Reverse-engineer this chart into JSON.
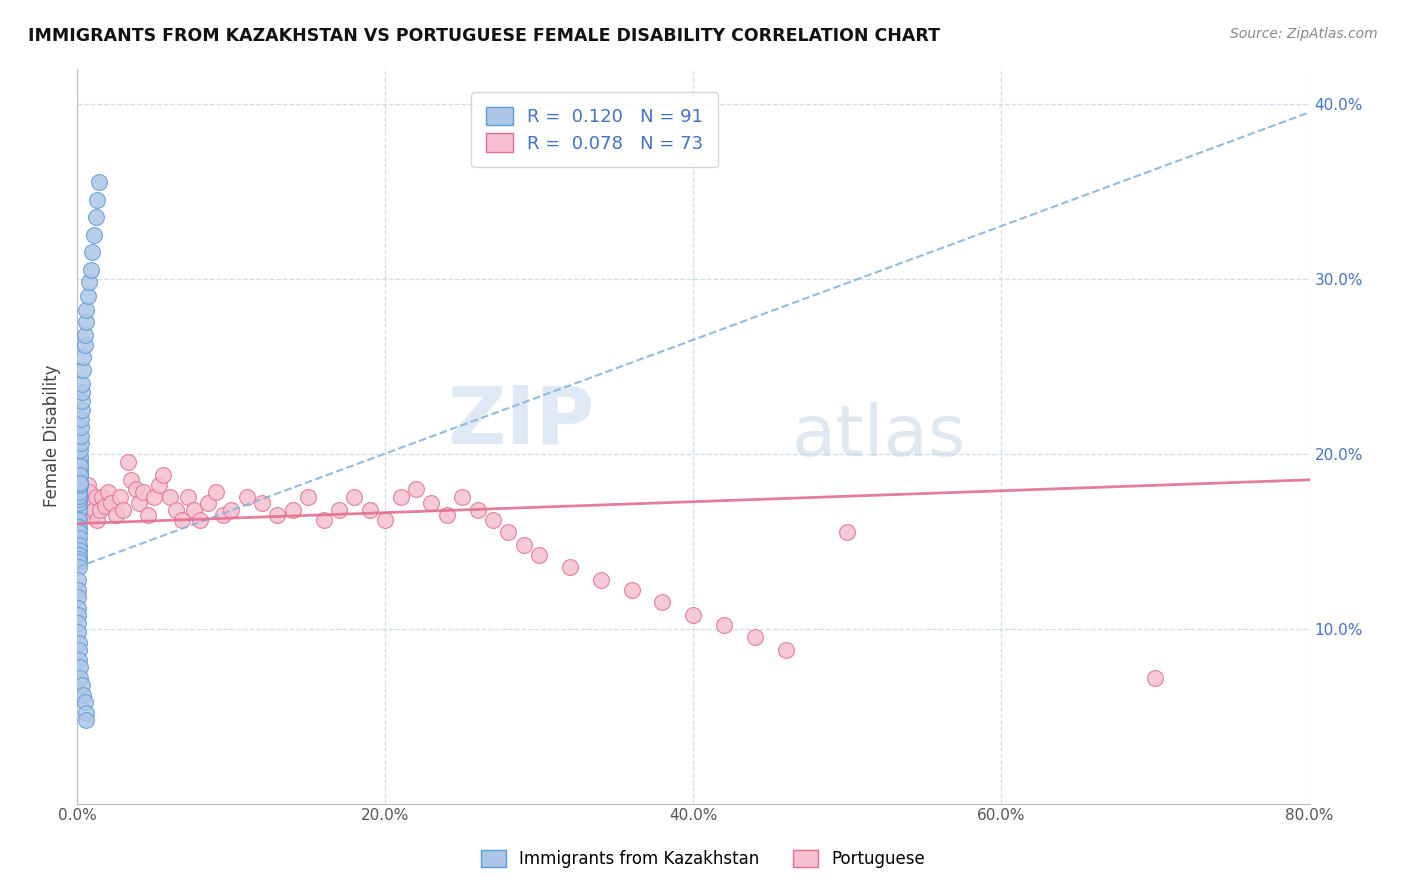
{
  "title": "IMMIGRANTS FROM KAZAKHSTAN VS PORTUGUESE FEMALE DISABILITY CORRELATION CHART",
  "source": "Source: ZipAtlas.com",
  "ylabel": "Female Disability",
  "xlim": [
    0.0,
    0.8
  ],
  "ylim": [
    0.0,
    0.42
  ],
  "xticks": [
    0.0,
    0.2,
    0.4,
    0.6,
    0.8
  ],
  "xtick_labels": [
    "0.0%",
    "20.0%",
    "40.0%",
    "60.0%",
    "80.0%"
  ],
  "yticks": [
    0.1,
    0.2,
    0.3,
    0.4
  ],
  "ytick_labels": [
    "10.0%",
    "20.0%",
    "30.0%",
    "40.0%"
  ],
  "series1_name": "Immigrants from Kazakhstan",
  "series1_color": "#adc6e8",
  "series1_edge_color": "#5b9bd5",
  "series1_R": 0.12,
  "series1_N": 91,
  "series2_name": "Portuguese",
  "series2_color": "#f5c0d0",
  "series2_edge_color": "#e0708a",
  "series2_R": 0.078,
  "series2_N": 73,
  "watermark_zip": "ZIP",
  "watermark_atlas": "atlas",
  "background_color": "#ffffff",
  "grid_color": "#d0dde8",
  "legend_R_color": "#4472c4",
  "legend_N_color": "#4472c4",
  "blue_trendline_color": "#8ab4d8",
  "pink_trendline_color": "#e07090",
  "scatter1_x": [
    0.0003,
    0.0003,
    0.0004,
    0.0004,
    0.0004,
    0.0005,
    0.0005,
    0.0005,
    0.0005,
    0.0006,
    0.0006,
    0.0006,
    0.0007,
    0.0007,
    0.0007,
    0.0008,
    0.0008,
    0.0008,
    0.0009,
    0.0009,
    0.001,
    0.001,
    0.001,
    0.001,
    0.001,
    0.001,
    0.001,
    0.001,
    0.001,
    0.001,
    0.001,
    0.001,
    0.0012,
    0.0012,
    0.0013,
    0.0013,
    0.0014,
    0.0014,
    0.0015,
    0.0015,
    0.0016,
    0.0016,
    0.0017,
    0.0017,
    0.0018,
    0.0019,
    0.002,
    0.002,
    0.002,
    0.002,
    0.0022,
    0.0023,
    0.0024,
    0.0025,
    0.0027,
    0.003,
    0.003,
    0.003,
    0.0035,
    0.004,
    0.004,
    0.005,
    0.005,
    0.006,
    0.006,
    0.007,
    0.008,
    0.009,
    0.01,
    0.011,
    0.012,
    0.013,
    0.014,
    0.0003,
    0.0004,
    0.0005,
    0.0006,
    0.0007,
    0.0008,
    0.0009,
    0.001,
    0.001,
    0.001,
    0.002,
    0.002,
    0.003,
    0.004,
    0.005,
    0.006,
    0.006
  ],
  "scatter1_y": [
    0.158,
    0.152,
    0.163,
    0.155,
    0.148,
    0.16,
    0.154,
    0.15,
    0.145,
    0.165,
    0.158,
    0.152,
    0.168,
    0.162,
    0.155,
    0.17,
    0.163,
    0.157,
    0.172,
    0.165,
    0.175,
    0.168,
    0.162,
    0.158,
    0.155,
    0.152,
    0.148,
    0.145,
    0.142,
    0.14,
    0.138,
    0.135,
    0.178,
    0.172,
    0.18,
    0.174,
    0.182,
    0.176,
    0.185,
    0.178,
    0.188,
    0.182,
    0.19,
    0.184,
    0.192,
    0.196,
    0.198,
    0.193,
    0.188,
    0.183,
    0.202,
    0.206,
    0.21,
    0.215,
    0.22,
    0.225,
    0.23,
    0.235,
    0.24,
    0.248,
    0.255,
    0.262,
    0.268,
    0.275,
    0.282,
    0.29,
    0.298,
    0.305,
    0.315,
    0.325,
    0.335,
    0.345,
    0.355,
    0.128,
    0.122,
    0.118,
    0.112,
    0.108,
    0.103,
    0.098,
    0.092,
    0.088,
    0.082,
    0.078,
    0.072,
    0.068,
    0.062,
    0.058,
    0.052,
    0.048
  ],
  "scatter2_x": [
    0.0005,
    0.001,
    0.0015,
    0.002,
    0.003,
    0.004,
    0.005,
    0.006,
    0.007,
    0.008,
    0.009,
    0.01,
    0.011,
    0.012,
    0.013,
    0.015,
    0.016,
    0.018,
    0.02,
    0.022,
    0.025,
    0.028,
    0.03,
    0.033,
    0.035,
    0.038,
    0.04,
    0.043,
    0.046,
    0.05,
    0.053,
    0.056,
    0.06,
    0.064,
    0.068,
    0.072,
    0.076,
    0.08,
    0.085,
    0.09,
    0.095,
    0.1,
    0.11,
    0.12,
    0.13,
    0.14,
    0.15,
    0.16,
    0.17,
    0.18,
    0.19,
    0.2,
    0.21,
    0.22,
    0.23,
    0.24,
    0.25,
    0.26,
    0.27,
    0.28,
    0.29,
    0.3,
    0.32,
    0.34,
    0.36,
    0.38,
    0.4,
    0.42,
    0.44,
    0.46,
    0.5,
    0.7
  ],
  "scatter2_y": [
    0.182,
    0.175,
    0.17,
    0.165,
    0.178,
    0.172,
    0.168,
    0.175,
    0.182,
    0.178,
    0.165,
    0.172,
    0.168,
    0.175,
    0.162,
    0.168,
    0.175,
    0.17,
    0.178,
    0.172,
    0.165,
    0.175,
    0.168,
    0.195,
    0.185,
    0.18,
    0.172,
    0.178,
    0.165,
    0.175,
    0.182,
    0.188,
    0.175,
    0.168,
    0.162,
    0.175,
    0.168,
    0.162,
    0.172,
    0.178,
    0.165,
    0.168,
    0.175,
    0.172,
    0.165,
    0.168,
    0.175,
    0.162,
    0.168,
    0.175,
    0.168,
    0.162,
    0.175,
    0.18,
    0.172,
    0.165,
    0.175,
    0.168,
    0.162,
    0.155,
    0.148,
    0.142,
    0.135,
    0.128,
    0.122,
    0.115,
    0.108,
    0.102,
    0.095,
    0.088,
    0.155,
    0.072
  ],
  "trend1_x0": 0.0,
  "trend1_x1": 0.8,
  "trend1_y0": 0.135,
  "trend1_y1": 0.395,
  "trend2_x0": 0.0,
  "trend2_x1": 0.8,
  "trend2_y0": 0.16,
  "trend2_y1": 0.185
}
